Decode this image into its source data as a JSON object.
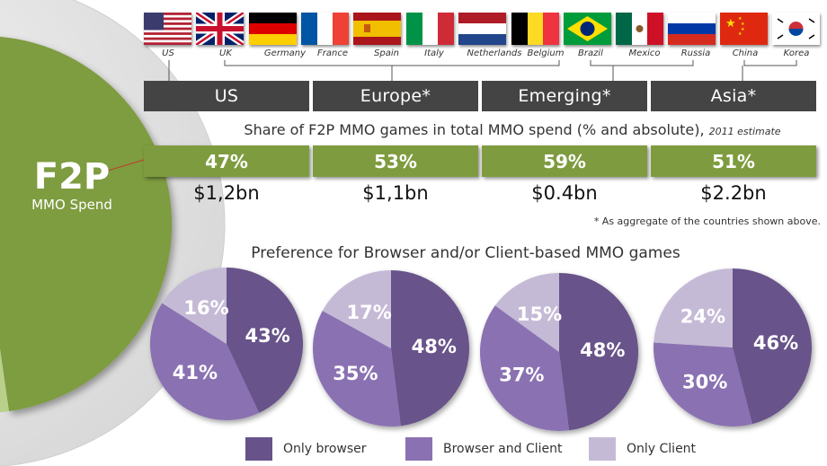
{
  "countries": [
    {
      "name": "US",
      "flag": "us-flag"
    },
    {
      "name": "UK",
      "flag": "uk-flag"
    },
    {
      "name": "Germany",
      "flag": "germany-flag"
    },
    {
      "name": "France",
      "flag": "france-flag"
    },
    {
      "name": "Spain",
      "flag": "spain-flag"
    },
    {
      "name": "Italy",
      "flag": "italy-flag"
    },
    {
      "name": "Netherlands",
      "flag": "netherlands-flag"
    },
    {
      "name": "Belgium",
      "flag": "belgium-flag"
    },
    {
      "name": "Brazil",
      "flag": "brazil-flag"
    },
    {
      "name": "Mexico",
      "flag": "mexico-flag"
    },
    {
      "name": "Russia",
      "flag": "russia-flag"
    },
    {
      "name": "China",
      "flag": "china-flag"
    },
    {
      "name": "Korea",
      "flag": "korea-flag"
    }
  ],
  "regions": [
    "US",
    "Europe*",
    "Emerging*",
    "Asia*"
  ],
  "share_title": "Share of F2P MMO games in total MMO spend  (% and absolute),",
  "share_subtitle": "2011 estimate",
  "shares": [
    "47%",
    "53%",
    "59%",
    "51%"
  ],
  "absolute": [
    "$1,2bn",
    "$1,1bn",
    "$0.4bn",
    "$2.2bn"
  ],
  "footnote": "* As aggregate of the countries shown above.",
  "f2p_label": {
    "title": "F2P",
    "subtitle": "MMO Spend"
  },
  "colors": {
    "dark": "#67528a",
    "mid": "#8a72b2",
    "light": "#c5bad6",
    "green": "#7e9c3f",
    "bar": "#444444"
  },
  "chart_data": {
    "type": "pie",
    "title": "Preference for Browser and/or Client-based MMO games",
    "categories": [
      "US",
      "Europe*",
      "Emerging*",
      "Asia*"
    ],
    "series": [
      {
        "name": "Only browser",
        "values": [
          43,
          48,
          48,
          46
        ]
      },
      {
        "name": "Browser and Client",
        "values": [
          41,
          35,
          37,
          30
        ]
      },
      {
        "name": "Only Client",
        "values": [
          16,
          17,
          15,
          24
        ]
      }
    ],
    "legend_position": "bottom"
  }
}
